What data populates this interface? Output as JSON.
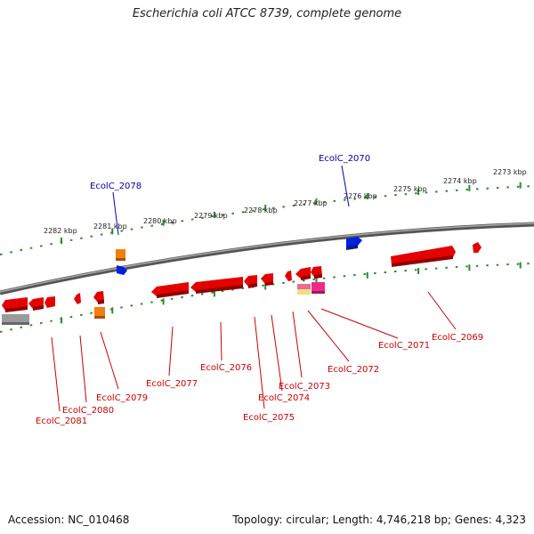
{
  "title": "Escherichia coli ATCC 8739, complete genome",
  "footer": {
    "accession": "Accession: NC_010468",
    "summary": "Topology: circular; Length: 4,746,218 bp; Genes: 4,323"
  },
  "colors": {
    "backbone": "#7a7a7a",
    "tick": "#2d8a2d",
    "gene_red": "#e50000",
    "gene_blue": "#0022dd",
    "gene_orange": "#f07f10",
    "gene_pink": "#ee2a8a",
    "gene_gray": "#9a9a9a",
    "gene_yellow": "#e9e08a",
    "label_red": "#cc0000",
    "label_blue": "#0000aa"
  },
  "ruler_labels": [
    "2273 kbp",
    "2274 kbp",
    "2275 kbp",
    "2276 kbp",
    "2277 kbp",
    "2278 kbp",
    "2279 kbp",
    "2280 kbp",
    "2281 kbp",
    "2282 kbp"
  ],
  "gene_labels": [
    {
      "text": "EcolC_2070",
      "color": "blue"
    },
    {
      "text": "EcolC_2078",
      "color": "blue"
    },
    {
      "text": "EcolC_2069",
      "color": "red"
    },
    {
      "text": "EcolC_2071",
      "color": "red"
    },
    {
      "text": "EcolC_2072",
      "color": "red"
    },
    {
      "text": "EcolC_2073",
      "color": "red"
    },
    {
      "text": "EcolC_2074",
      "color": "red"
    },
    {
      "text": "EcolC_2075",
      "color": "red"
    },
    {
      "text": "EcolC_2076",
      "color": "red"
    },
    {
      "text": "EcolC_2077",
      "color": "red"
    },
    {
      "text": "EcolC_2079",
      "color": "red"
    },
    {
      "text": "EcolC_2080",
      "color": "red"
    },
    {
      "text": "EcolC_2081",
      "color": "red"
    }
  ]
}
